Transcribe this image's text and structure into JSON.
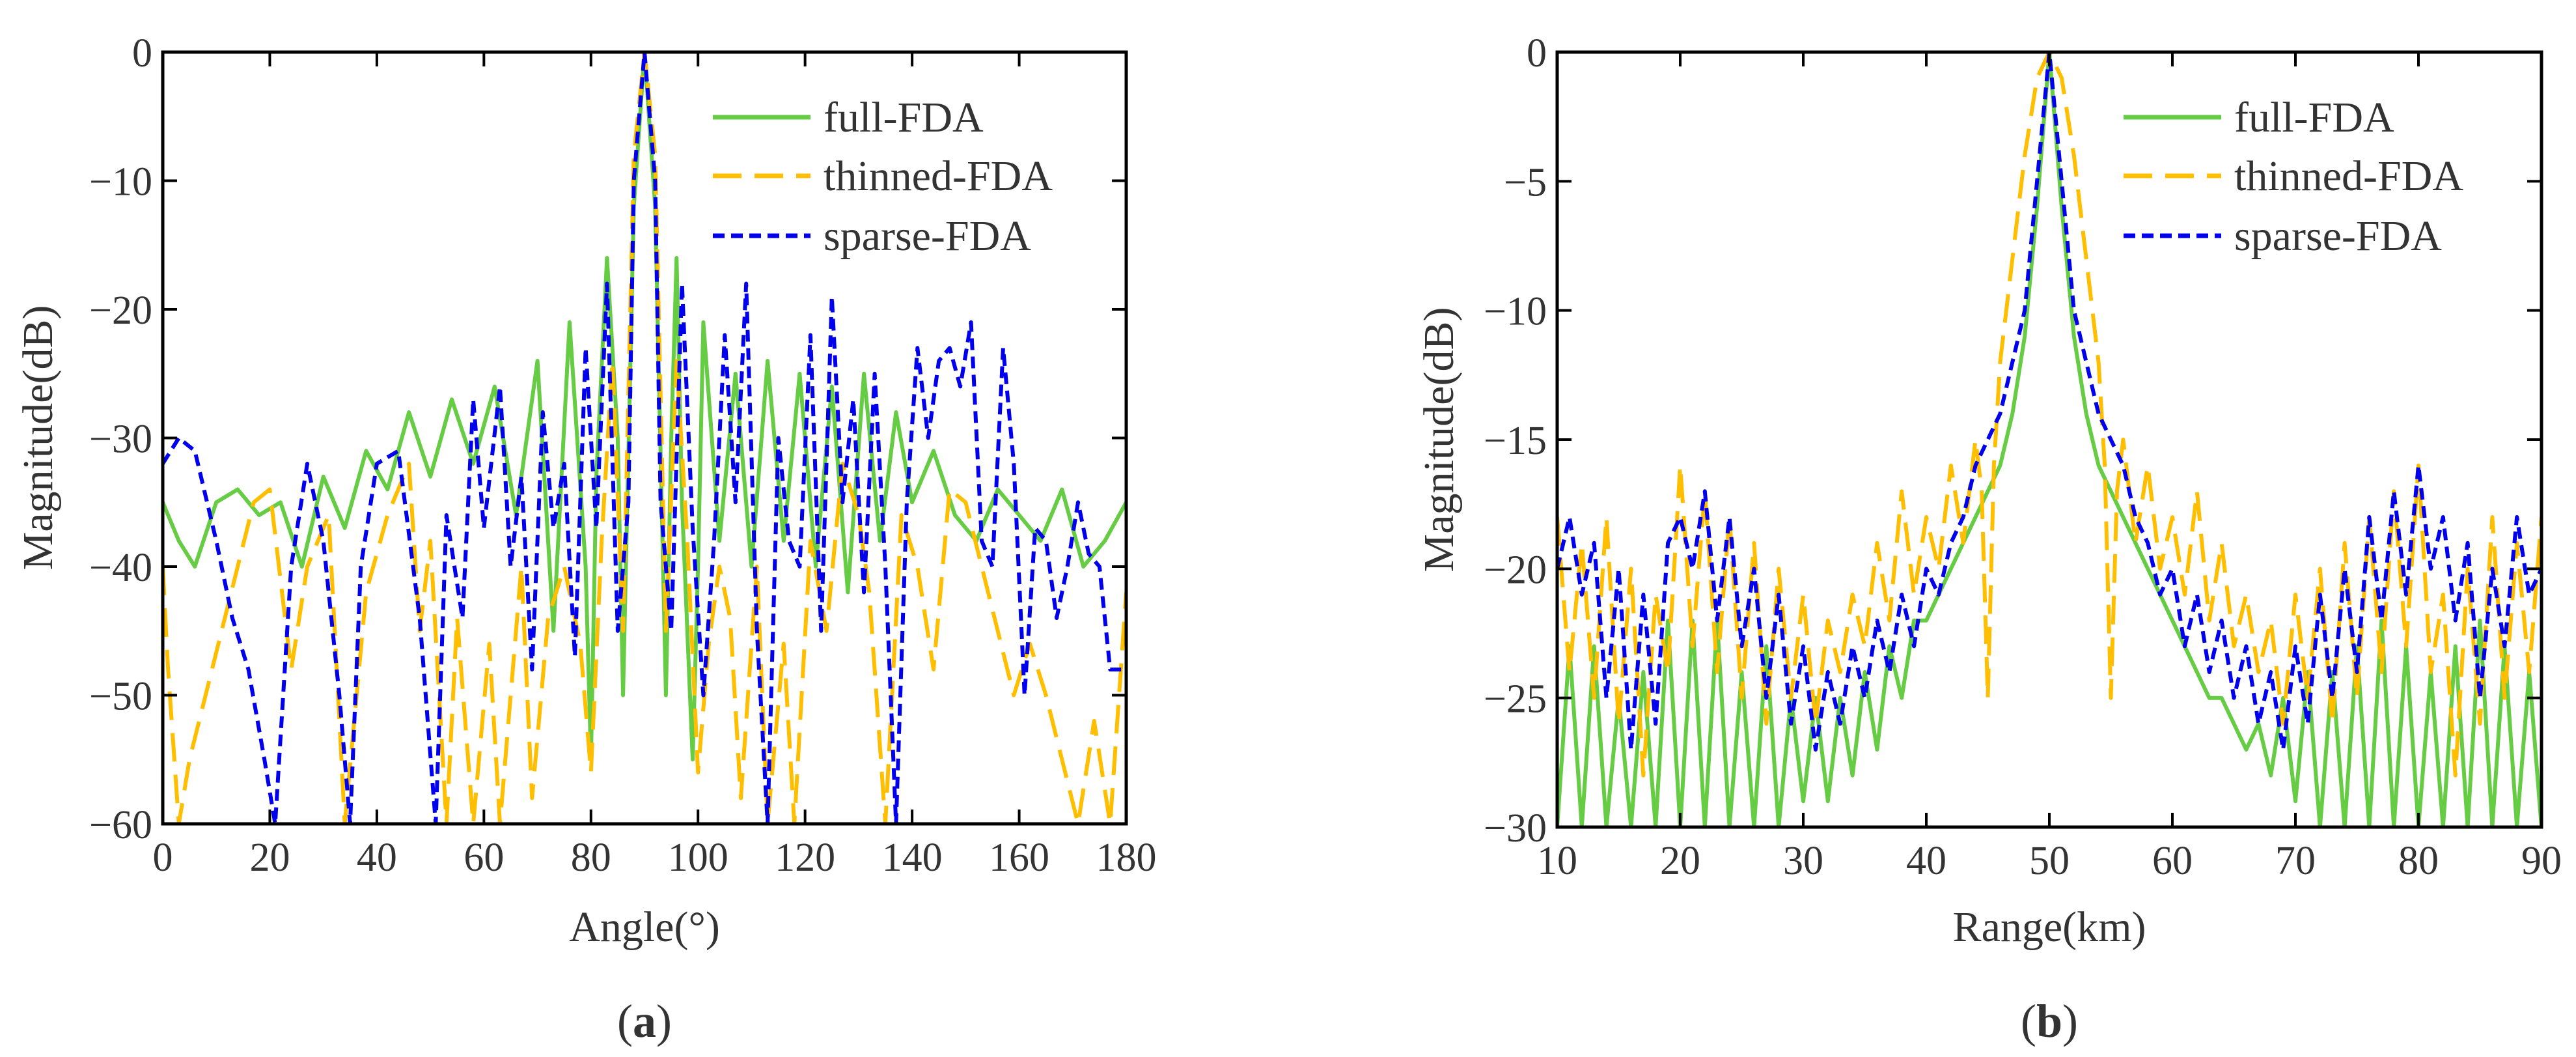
{
  "colors": {
    "full": "#66cc44",
    "thinned": "#ffbf00",
    "sparse": "#0000ee",
    "axis": "#000000",
    "text": "#333333"
  },
  "chart_data": [
    {
      "type": "line",
      "panel_label": "a",
      "xlabel": "Angle(°)",
      "ylabel": "Magnitude(dB)",
      "xlim": [
        0,
        180
      ],
      "ylim": [
        -60,
        0
      ],
      "xticks": [
        0,
        20,
        40,
        60,
        80,
        100,
        120,
        140,
        160,
        180
      ],
      "yticks": [
        0,
        -10,
        -20,
        -30,
        -40,
        -50,
        -60
      ],
      "grid": false,
      "legend_position": "top-right",
      "series": [
        {
          "name": "full-FDA",
          "style": "solid",
          "color": "#66cc44",
          "x": [
            0,
            3,
            6,
            10,
            14,
            18,
            22,
            26,
            30,
            34,
            38,
            42,
            46,
            50,
            54,
            58,
            62,
            66,
            70,
            73,
            76,
            79,
            80,
            81,
            83,
            85,
            86,
            88,
            90,
            92,
            94,
            95,
            96,
            97,
            99,
            100,
            101,
            104,
            107,
            110,
            113,
            116,
            119,
            122,
            125,
            128,
            131,
            134,
            137,
            140,
            144,
            148,
            152,
            156,
            160,
            164,
            168,
            172,
            176,
            180
          ],
          "y": [
            -35,
            -38,
            -40,
            -35,
            -34,
            -36,
            -35,
            -40,
            -33,
            -37,
            -31,
            -34,
            -28,
            -33,
            -27,
            -32,
            -26,
            -36,
            -24,
            -45,
            -21,
            -40,
            -55,
            -33,
            -16,
            -30,
            -50,
            -12,
            0,
            -12,
            -50,
            -30,
            -16,
            -35,
            -55,
            -40,
            -21,
            -38,
            -25,
            -40,
            -24,
            -38,
            -25,
            -40,
            -26,
            -42,
            -25,
            -38,
            -28,
            -35,
            -31,
            -36,
            -38,
            -34,
            -36,
            -38,
            -34,
            -40,
            -38,
            -35
          ]
        },
        {
          "name": "thinned-FDA",
          "style": "dashed",
          "color": "#ffbf00",
          "x": [
            0,
            1,
            3,
            5,
            8,
            11,
            14,
            17,
            20,
            24,
            27,
            31,
            34,
            38,
            42,
            46,
            48,
            50,
            53,
            55,
            58,
            61,
            63,
            67,
            69,
            72,
            75,
            78,
            80,
            82,
            84,
            86,
            88,
            90,
            92,
            94,
            96,
            98,
            100,
            102,
            104,
            106,
            108,
            111,
            113,
            116,
            118,
            121,
            124,
            127,
            130,
            132,
            135,
            138,
            141,
            144,
            147,
            150,
            153,
            156,
            159,
            162,
            165,
            168,
            171,
            174,
            177,
            180
          ],
          "y": [
            -40,
            -48,
            -60,
            -55,
            -50,
            -45,
            -40,
            -35,
            -34,
            -48,
            -40,
            -36,
            -60,
            -42,
            -36,
            -32,
            -45,
            -38,
            -60,
            -44,
            -60,
            -46,
            -60,
            -40,
            -58,
            -44,
            -40,
            -46,
            -56,
            -38,
            -24,
            -45,
            -8,
            0,
            -8,
            -45,
            -24,
            -38,
            -56,
            -46,
            -40,
            -44,
            -58,
            -40,
            -60,
            -46,
            -60,
            -38,
            -45,
            -32,
            -36,
            -42,
            -60,
            -36,
            -40,
            -48,
            -34,
            -35,
            -40,
            -45,
            -50,
            -46,
            -50,
            -55,
            -60,
            -52,
            -60,
            -42
          ]
        },
        {
          "name": "sparse-FDA",
          "style": "dotted-dash",
          "color": "#0000ee",
          "x": [
            0,
            3,
            6,
            10,
            13,
            16,
            19,
            21,
            24,
            27,
            30,
            33,
            35,
            37,
            40,
            44,
            48,
            51,
            53,
            56,
            58,
            60,
            63,
            65,
            67,
            69,
            71,
            73,
            75,
            77,
            79,
            81,
            83,
            85,
            87,
            88,
            90,
            92,
            93,
            95,
            97,
            99,
            101,
            103,
            105,
            107,
            109,
            111,
            113,
            115,
            117,
            119,
            121,
            123,
            125,
            127,
            129,
            131,
            133,
            135,
            137,
            139,
            141,
            143,
            145,
            147,
            149,
            151,
            153,
            155,
            157,
            159,
            161,
            163,
            165,
            167,
            169,
            171,
            173,
            175,
            177,
            180
          ],
          "y": [
            -32,
            -30,
            -31,
            -38,
            -44,
            -48,
            -55,
            -60,
            -40,
            -32,
            -38,
            -50,
            -60,
            -40,
            -32,
            -31,
            -44,
            -60,
            -36,
            -44,
            -27,
            -37,
            -26,
            -40,
            -33,
            -48,
            -28,
            -37,
            -32,
            -47,
            -23,
            -37,
            -18,
            -45,
            -35,
            -10,
            0,
            -10,
            -35,
            -45,
            -18,
            -37,
            -50,
            -38,
            -22,
            -35,
            -18,
            -45,
            -60,
            -30,
            -38,
            -40,
            -22,
            -45,
            -19,
            -35,
            -27,
            -42,
            -25,
            -40,
            -60,
            -35,
            -23,
            -30,
            -24,
            -23,
            -26,
            -21,
            -38,
            -40,
            -23,
            -32,
            -50,
            -37,
            -38,
            -44,
            -40,
            -35,
            -39,
            -40,
            -48,
            -48
          ]
        }
      ]
    },
    {
      "type": "line",
      "panel_label": "b",
      "xlabel": "Range(km)",
      "ylabel": "Magnitude(dB)",
      "xlim": [
        10,
        90
      ],
      "ylim": [
        -30,
        0
      ],
      "xticks": [
        10,
        20,
        30,
        40,
        50,
        60,
        70,
        80,
        90
      ],
      "yticks": [
        0,
        -5,
        -10,
        -15,
        -20,
        -25,
        -30
      ],
      "grid": false,
      "legend_position": "top-right",
      "series": [
        {
          "name": "full-FDA",
          "style": "solid",
          "color": "#66cc44",
          "x": [
            10,
            11,
            12,
            13,
            14,
            15,
            16,
            17,
            18,
            19,
            20,
            21,
            22,
            23,
            24,
            25,
            26,
            27,
            28,
            29,
            30,
            31,
            32,
            33,
            34,
            35,
            36,
            37,
            38,
            39,
            40,
            41,
            42,
            43,
            44,
            45,
            46,
            47,
            48,
            49,
            50,
            51,
            52,
            53,
            54,
            55,
            56,
            57,
            58,
            59,
            60,
            61,
            62,
            63,
            64,
            65,
            66,
            67,
            68,
            69,
            70,
            71,
            72,
            73,
            74,
            75,
            76,
            77,
            78,
            79,
            80,
            81,
            82,
            83,
            84,
            85,
            86,
            87,
            88,
            89,
            90
          ],
          "y": [
            -30,
            -23,
            -30,
            -23,
            -30,
            -25,
            -30,
            -24,
            -30,
            -22,
            -30,
            -22,
            -30,
            -22,
            -30,
            -24,
            -30,
            -23,
            -30,
            -25,
            -29,
            -25,
            -29,
            -25,
            -28,
            -24,
            -27,
            -23,
            -25,
            -22,
            -22,
            -21,
            -20,
            -19,
            -18,
            -17,
            -16,
            -14,
            -11,
            -6,
            0,
            -6,
            -11,
            -14,
            -16,
            -17,
            -18,
            -19,
            -20,
            -21,
            -22,
            -23,
            -24,
            -25,
            -25,
            -26,
            -27,
            -26,
            -28,
            -25,
            -29,
            -24,
            -30,
            -24,
            -30,
            -23,
            -30,
            -22,
            -30,
            -23,
            -30,
            -24,
            -30,
            -23,
            -30,
            -22,
            -30,
            -23,
            -30,
            -24,
            -30
          ]
        },
        {
          "name": "thinned-FDA",
          "style": "dashed",
          "color": "#ffbf00",
          "x": [
            10,
            11,
            12,
            13,
            14,
            15,
            16,
            17,
            18,
            19,
            20,
            21,
            22,
            23,
            24,
            25,
            26,
            27,
            28,
            29,
            30,
            31,
            32,
            33,
            34,
            35,
            36,
            37,
            38,
            39,
            40,
            41,
            42,
            43,
            44,
            44.5,
            45,
            45.5,
            46,
            47,
            48,
            49,
            50,
            51,
            52,
            53,
            54,
            54.5,
            55,
            55.5,
            56,
            57,
            58,
            59,
            60,
            61,
            62,
            63,
            64,
            65,
            66,
            67,
            68,
            69,
            70,
            71,
            72,
            73,
            74,
            75,
            76,
            77,
            78,
            79,
            80,
            81,
            82,
            83,
            84,
            85,
            86,
            87,
            88,
            89,
            90
          ],
          "y": [
            -18,
            -24,
            -19,
            -25,
            -18,
            -26,
            -20,
            -28,
            -21,
            -24,
            -16,
            -23,
            -17,
            -24,
            -18,
            -25,
            -19,
            -26,
            -20,
            -25,
            -21,
            -26,
            -22,
            -24,
            -21,
            -23,
            -19,
            -22,
            -17,
            -21,
            -18,
            -20,
            -16,
            -19,
            -15,
            -17,
            -25,
            -16,
            -12,
            -8,
            -4,
            -1,
            0,
            -1,
            -4,
            -8,
            -12,
            -16,
            -25,
            -17,
            -15,
            -19,
            -16,
            -20,
            -18,
            -21,
            -17,
            -22,
            -19,
            -23,
            -21,
            -24,
            -22,
            -26,
            -21,
            -25,
            -20,
            -26,
            -19,
            -25,
            -18,
            -24,
            -17,
            -23,
            -16,
            -24,
            -21,
            -28,
            -20,
            -26,
            -18,
            -25,
            -19,
            -24,
            -18
          ]
        },
        {
          "name": "sparse-FDA",
          "style": "dotted-dash",
          "color": "#0000ee",
          "x": [
            10,
            11,
            12,
            13,
            14,
            15,
            16,
            17,
            18,
            19,
            20,
            21,
            22,
            23,
            24,
            25,
            26,
            27,
            28,
            29,
            30,
            31,
            32,
            33,
            34,
            35,
            36,
            37,
            38,
            39,
            40,
            41,
            42,
            43,
            44,
            45,
            46,
            47,
            48,
            49,
            50,
            51,
            52,
            53,
            54,
            55,
            56,
            57,
            58,
            59,
            60,
            61,
            62,
            63,
            64,
            65,
            66,
            67,
            68,
            69,
            70,
            71,
            72,
            73,
            74,
            75,
            76,
            77,
            78,
            79,
            80,
            81,
            82,
            83,
            84,
            85,
            86,
            87,
            88,
            89,
            90
          ],
          "y": [
            -20,
            -18,
            -21,
            -19,
            -25,
            -20,
            -27,
            -21,
            -26,
            -19,
            -18,
            -20,
            -17,
            -22,
            -18,
            -23,
            -20,
            -25,
            -21,
            -26,
            -23,
            -27,
            -24,
            -26,
            -23,
            -25,
            -22,
            -24,
            -21,
            -23,
            -20,
            -21,
            -19,
            -18,
            -16,
            -15,
            -14,
            -12,
            -10,
            -5,
            0,
            -5,
            -10,
            -12,
            -14,
            -15,
            -16,
            -18,
            -19,
            -21,
            -20,
            -23,
            -21,
            -24,
            -22,
            -25,
            -23,
            -26,
            -24,
            -27,
            -23,
            -26,
            -21,
            -25,
            -20,
            -24,
            -18,
            -22,
            -17,
            -21,
            -16,
            -20,
            -18,
            -22,
            -19,
            -25,
            -20,
            -23,
            -18,
            -21,
            -20
          ]
        }
      ]
    }
  ]
}
